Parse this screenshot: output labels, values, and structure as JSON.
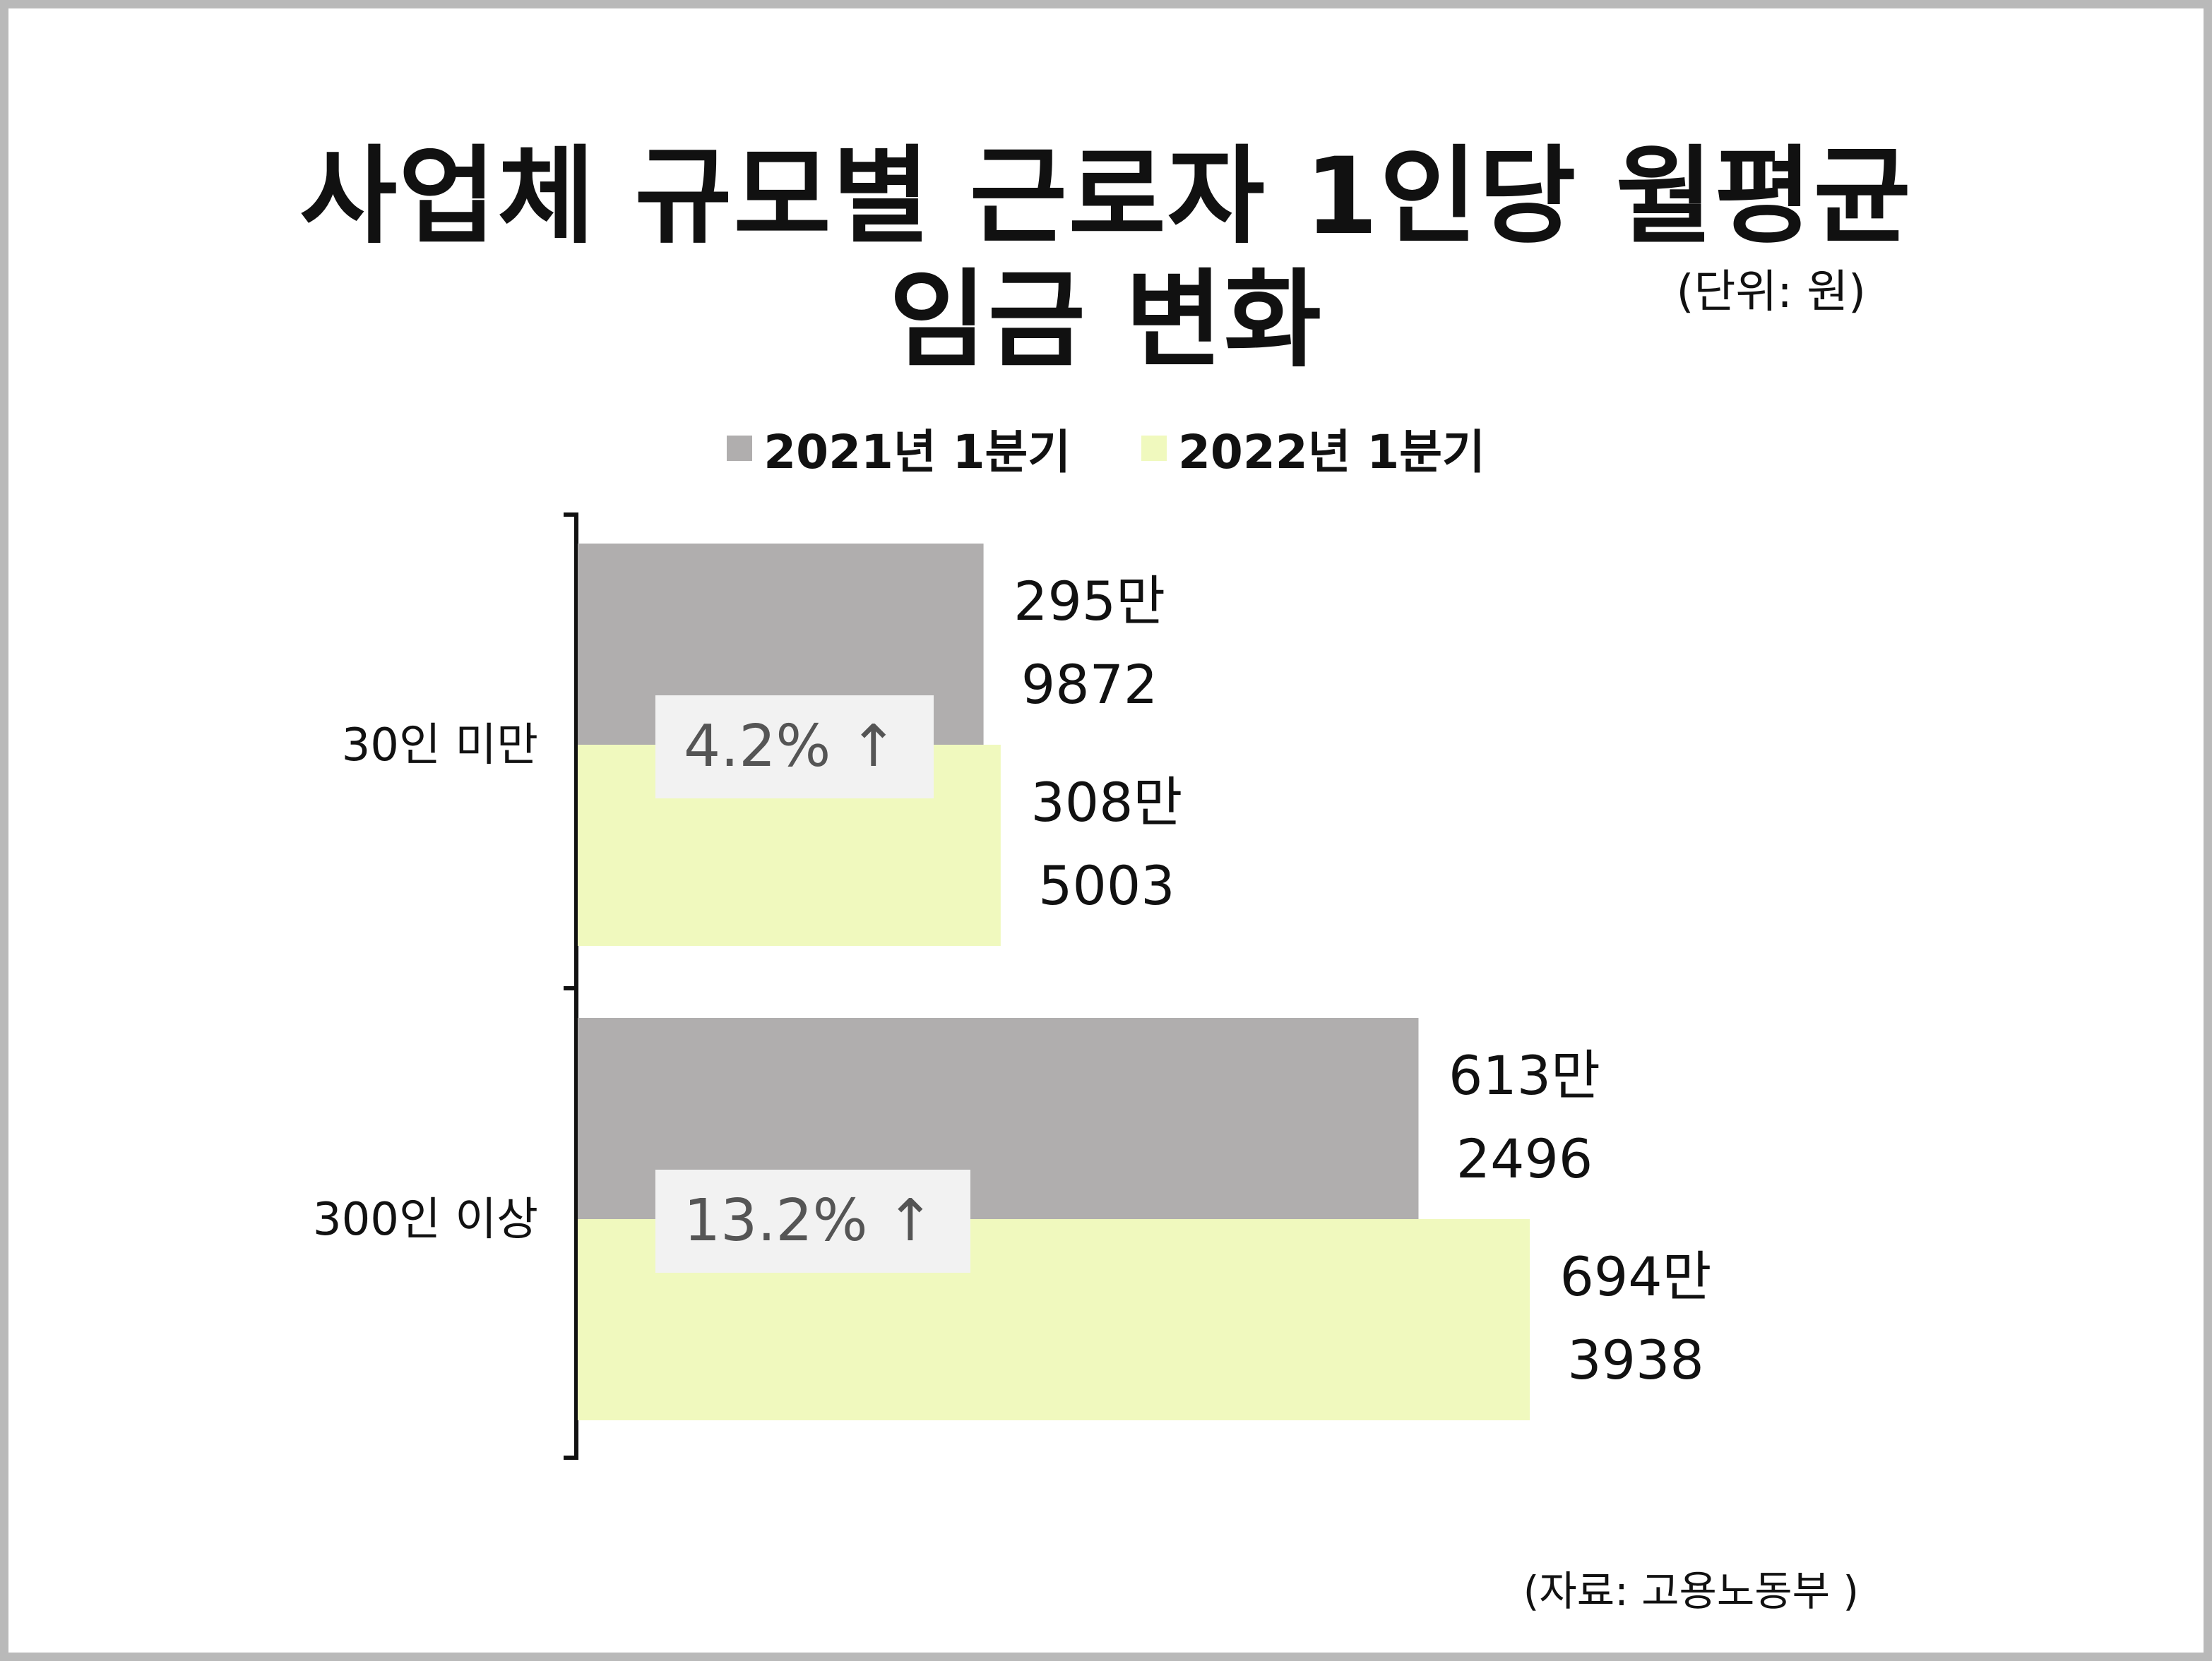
{
  "title_line1": "사업체 규모별 근로자 1인당 월평균",
  "title_line2": "임금 변화",
  "unit_note": "(단위: 원)",
  "source_note": "(자료: 고용노동부 )",
  "colors": {
    "series_2021": "#b0aeae",
    "series_2022": "#f0f9be",
    "badge_bg": "#f2f2f2",
    "badge_text": "#555555",
    "axis": "#111111"
  },
  "chart_data": {
    "type": "bar",
    "orientation": "horizontal",
    "categories": [
      "30인 미만",
      "300인 이상"
    ],
    "series": [
      {
        "name": "2021년 1분기",
        "values": [
          2959872,
          6132496
        ],
        "labels": [
          [
            "295만",
            "9872"
          ],
          [
            "613만",
            "2496"
          ]
        ]
      },
      {
        "name": "2022년 1분기",
        "values": [
          3085003,
          6943938
        ],
        "labels": [
          [
            "308만",
            "5003"
          ],
          [
            "694만",
            "3938"
          ]
        ]
      }
    ],
    "annotations": [
      "4.2% ↑",
      "13.2% ↑"
    ],
    "xlim": [
      0,
      10500000
    ],
    "grid": false,
    "legend_position": "top"
  }
}
